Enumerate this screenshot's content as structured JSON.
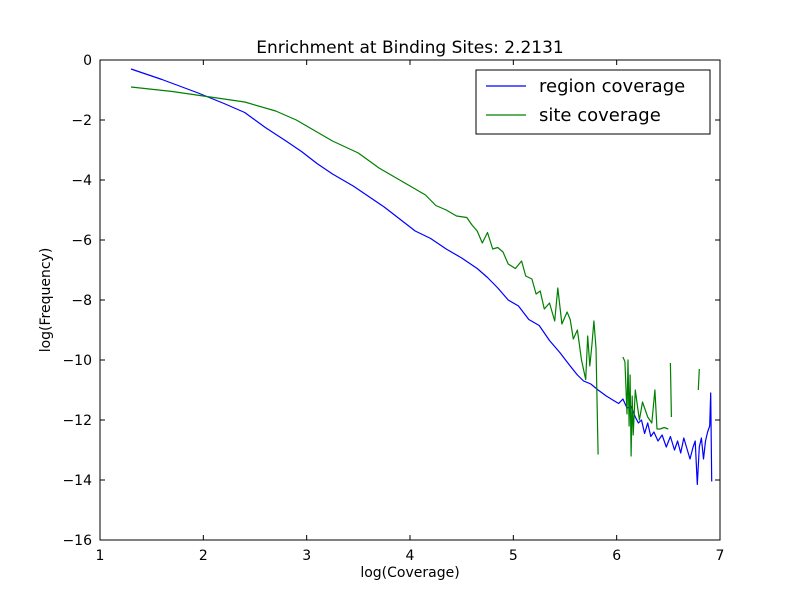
{
  "chart_data": {
    "type": "line",
    "title": "Enrichment at Binding Sites: 2.2131",
    "xlabel": "log(Coverage)",
    "ylabel": "log(Frequency)",
    "xlim": [
      1,
      7
    ],
    "ylim": [
      -16,
      0
    ],
    "xticks": [
      1,
      2,
      3,
      4,
      5,
      6,
      7
    ],
    "yticks": [
      0,
      -2,
      -4,
      -6,
      -8,
      -10,
      -12,
      -14,
      -16
    ],
    "grid": false,
    "legend_position": "upper right",
    "series": [
      {
        "name": "region coverage",
        "color": "#0000ff",
        "points": [
          [
            1.3,
            -0.3
          ],
          [
            1.6,
            -0.65
          ],
          [
            1.95,
            -1.1
          ],
          [
            2.2,
            -1.45
          ],
          [
            2.4,
            -1.75
          ],
          [
            2.6,
            -2.25
          ],
          [
            2.8,
            -2.7
          ],
          [
            2.95,
            -3.05
          ],
          [
            3.1,
            -3.45
          ],
          [
            3.25,
            -3.8
          ],
          [
            3.45,
            -4.2
          ],
          [
            3.6,
            -4.55
          ],
          [
            3.75,
            -4.9
          ],
          [
            3.9,
            -5.3
          ],
          [
            4.05,
            -5.7
          ],
          [
            4.2,
            -5.95
          ],
          [
            4.35,
            -6.3
          ],
          [
            4.5,
            -6.6
          ],
          [
            4.65,
            -6.95
          ],
          [
            4.75,
            -7.25
          ],
          [
            4.85,
            -7.6
          ],
          [
            4.95,
            -8.0
          ],
          [
            5.05,
            -8.2
          ],
          [
            5.15,
            -8.65
          ],
          [
            5.25,
            -8.85
          ],
          [
            5.35,
            -9.35
          ],
          [
            5.45,
            -9.75
          ],
          [
            5.55,
            -10.2
          ],
          [
            5.62,
            -10.5
          ],
          [
            5.68,
            -10.7
          ],
          [
            5.75,
            -10.8
          ],
          [
            5.82,
            -11.0
          ],
          [
            5.9,
            -11.2
          ],
          [
            5.97,
            -11.35
          ],
          [
            6.02,
            -11.45
          ],
          [
            6.06,
            -11.3
          ],
          [
            6.1,
            -11.6
          ],
          [
            6.14,
            -11.55
          ],
          [
            6.18,
            -11.9
          ],
          [
            6.21,
            -12.1
          ],
          [
            6.24,
            -12.0
          ],
          [
            6.27,
            -12.45
          ],
          [
            6.3,
            -12.1
          ],
          [
            6.33,
            -12.55
          ],
          [
            6.36,
            -12.4
          ],
          [
            6.4,
            -12.7
          ],
          [
            6.44,
            -12.5
          ],
          [
            6.48,
            -12.9
          ],
          [
            6.52,
            -12.55
          ],
          [
            6.56,
            -13.0
          ],
          [
            6.59,
            -12.7
          ],
          [
            6.62,
            -13.1
          ],
          [
            6.65,
            -12.6
          ],
          [
            6.68,
            -12.95
          ],
          [
            6.71,
            -13.3
          ],
          [
            6.74,
            -12.9
          ],
          [
            6.76,
            -12.7
          ],
          [
            6.78,
            -14.15
          ],
          [
            6.8,
            -12.9
          ],
          [
            6.82,
            -12.6
          ],
          [
            6.84,
            -13.3
          ],
          [
            6.86,
            -12.7
          ],
          [
            6.88,
            -12.4
          ],
          [
            6.9,
            -12.2
          ],
          [
            6.91,
            -11.1
          ],
          [
            6.92,
            -14.05
          ]
        ]
      },
      {
        "name": "site coverage",
        "color": "#008000",
        "points": [
          [
            1.3,
            -0.9
          ],
          [
            1.7,
            -1.05
          ],
          [
            2.0,
            -1.2
          ],
          [
            2.4,
            -1.4
          ],
          [
            2.7,
            -1.7
          ],
          [
            2.9,
            -2.0
          ],
          [
            3.05,
            -2.3
          ],
          [
            3.25,
            -2.7
          ],
          [
            3.5,
            -3.1
          ],
          [
            3.7,
            -3.6
          ],
          [
            3.9,
            -4.0
          ],
          [
            4.05,
            -4.3
          ],
          [
            4.15,
            -4.5
          ],
          [
            4.25,
            -4.85
          ],
          [
            4.35,
            -5.0
          ],
          [
            4.45,
            -5.2
          ],
          [
            4.55,
            -5.25
          ],
          [
            4.6,
            -5.5
          ],
          [
            4.65,
            -5.7
          ],
          [
            4.7,
            -6.1
          ],
          [
            4.75,
            -5.75
          ],
          [
            4.8,
            -6.3
          ],
          [
            4.85,
            -6.25
          ],
          [
            4.9,
            -6.4
          ],
          [
            4.95,
            -6.8
          ],
          [
            5.02,
            -6.95
          ],
          [
            5.08,
            -6.7
          ],
          [
            5.12,
            -7.2
          ],
          [
            5.18,
            -7.3
          ],
          [
            5.22,
            -7.8
          ],
          [
            5.26,
            -7.7
          ],
          [
            5.3,
            -8.3
          ],
          [
            5.35,
            -8.1
          ],
          [
            5.4,
            -8.7
          ],
          [
            5.43,
            -7.6
          ],
          [
            5.47,
            -8.8
          ],
          [
            5.52,
            -8.4
          ],
          [
            5.55,
            -8.65
          ],
          [
            5.58,
            -9.3
          ],
          [
            5.62,
            -9.0
          ],
          [
            5.66,
            -10.0
          ],
          [
            5.7,
            -10.65
          ],
          [
            5.72,
            -9.2
          ],
          [
            5.74,
            -10.2
          ],
          [
            5.76,
            -9.5
          ],
          [
            5.78,
            -8.7
          ],
          [
            5.8,
            -9.6
          ],
          [
            5.82,
            -13.15
          ]
        ],
        "segments": [
          [
            [
              6.06,
              -9.9
            ],
            [
              6.08,
              -10.05
            ],
            [
              6.1,
              -11.8
            ],
            [
              6.11,
              -10.0
            ],
            [
              6.12,
              -12.2
            ],
            [
              6.13,
              -10.5
            ],
            [
              6.14,
              -13.2
            ],
            [
              6.15,
              -11.2
            ],
            [
              6.16,
              -12.5
            ],
            [
              6.18,
              -11.0
            ],
            [
              6.2,
              -11.5
            ],
            [
              6.22,
              -12.0
            ],
            [
              6.25,
              -11.4
            ],
            [
              6.3,
              -11.9
            ],
            [
              6.34,
              -12.1
            ],
            [
              6.37,
              -11.0
            ],
            [
              6.39,
              -12.3
            ],
            [
              6.42,
              -12.3
            ],
            [
              6.46,
              -12.25
            ],
            [
              6.5,
              -12.3
            ]
          ],
          [
            [
              6.52,
              -10.1
            ],
            [
              6.53,
              -11.9
            ]
          ],
          [
            [
              6.79,
              -11.0
            ],
            [
              6.8,
              -10.3
            ]
          ]
        ]
      }
    ]
  }
}
